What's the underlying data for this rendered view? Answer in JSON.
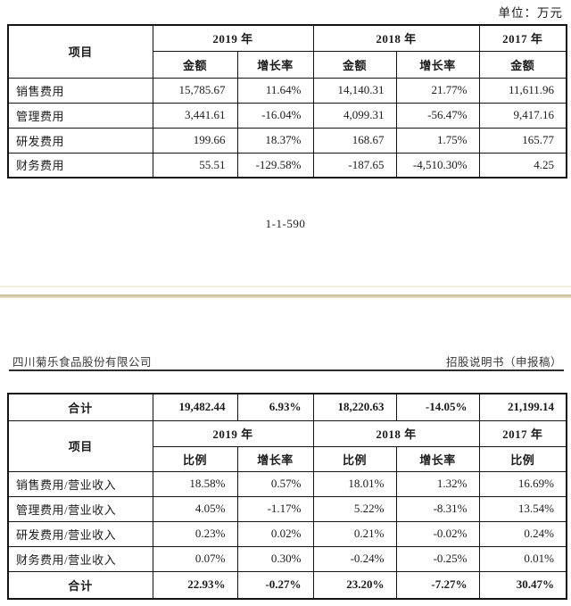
{
  "unit_label": "单位：万元",
  "page_number": "1-1-590",
  "page_header": {
    "company": "四川菊乐食品股份有限公司",
    "doc_title": "招股说明书（申报稿）"
  },
  "expense_table": {
    "col_item": "项目",
    "col_2019": "2019 年",
    "col_2018": "2018 年",
    "col_2017": "2017 年",
    "sub_amount": "金额",
    "sub_growth": "增长率",
    "rows": [
      {
        "label": "销售费用",
        "c": [
          "15,785.67",
          "11.64%",
          "14,140.31",
          "21.77%",
          "11,611.96"
        ]
      },
      {
        "label": "管理费用",
        "c": [
          "3,441.61",
          "-16.04%",
          "4,099.31",
          "-56.47%",
          "9,417.16"
        ]
      },
      {
        "label": "研发费用",
        "c": [
          "199.66",
          "18.37%",
          "168.67",
          "1.75%",
          "165.77"
        ]
      },
      {
        "label": "财务费用",
        "c": [
          "55.51",
          "-129.58%",
          "-187.65",
          "-4,510.30%",
          "4.25"
        ]
      }
    ]
  },
  "ratio_table": {
    "total_row": {
      "label": "合计",
      "c": [
        "19,482.44",
        "6.93%",
        "18,220.63",
        "-14.05%",
        "21,199.14"
      ]
    },
    "col_item": "项目",
    "col_2019": "2019 年",
    "col_2018": "2018 年",
    "col_2017": "2017 年",
    "sub_ratio": "比例",
    "sub_growth": "增长率",
    "rows": [
      {
        "label": "销售费用/营业收入",
        "c": [
          "18.58%",
          "0.57%",
          "18.01%",
          "1.32%",
          "16.69%"
        ]
      },
      {
        "label": "管理费用/营业收入",
        "c": [
          "4.05%",
          "-1.17%",
          "5.22%",
          "-8.31%",
          "13.54%"
        ]
      },
      {
        "label": "研发费用/营业收入",
        "c": [
          "0.23%",
          "0.02%",
          "0.21%",
          "-0.02%",
          "0.24%"
        ]
      },
      {
        "label": "财务费用/营业收入",
        "c": [
          "0.07%",
          "0.30%",
          "-0.24%",
          "-0.25%",
          "0.01%"
        ]
      }
    ],
    "footer_row": {
      "label": "合计",
      "c": [
        "22.93%",
        "-0.27%",
        "23.20%",
        "-7.27%",
        "30.47%"
      ]
    }
  }
}
